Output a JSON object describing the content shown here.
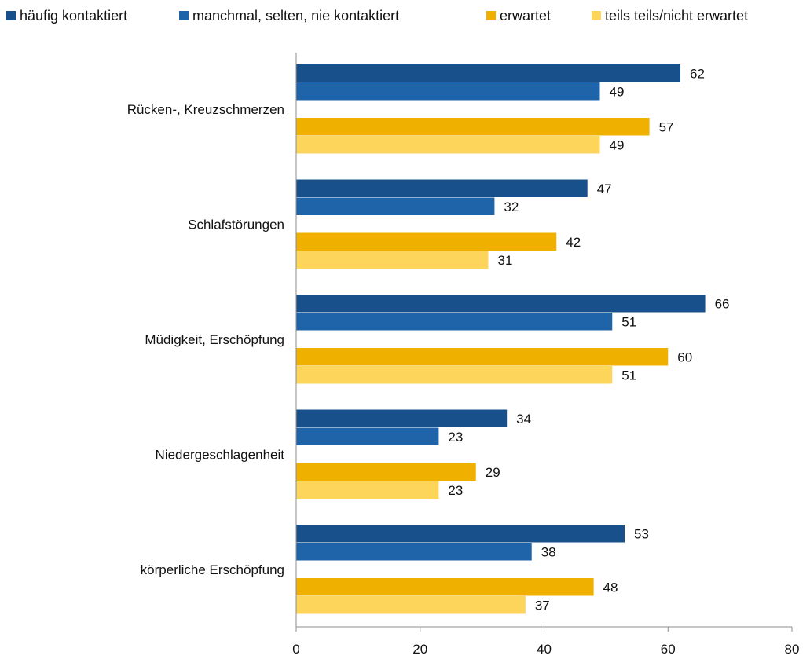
{
  "chart_data": {
    "type": "bar",
    "orientation": "horizontal",
    "categories": [
      "Rücken-, Kreuzschmerzen",
      "Schlafstörungen",
      "Müdigkeit, Erschöpfung",
      "Niedergeschlagenheit",
      "körperliche Erschöpfung"
    ],
    "series": [
      {
        "name": "häufig kontaktiert",
        "color": "#17508A",
        "values": [
          62,
          47,
          66,
          34,
          53
        ]
      },
      {
        "name": "manchmal, selten, nie kontaktiert",
        "color": "#1F64A8",
        "values": [
          49,
          32,
          51,
          23,
          38
        ]
      },
      {
        "name": "erwartet",
        "color": "#F0B000",
        "values": [
          57,
          42,
          60,
          29,
          48
        ]
      },
      {
        "name": "teils teils/nicht erwartet",
        "color": "#FDD55B",
        "values": [
          49,
          31,
          51,
          23,
          37
        ]
      }
    ],
    "xlim": [
      0,
      80
    ],
    "xticks": [
      "0",
      "20",
      "40",
      "60",
      "80"
    ],
    "title": "",
    "xlabel": "",
    "ylabel": "",
    "legend_position": "top",
    "grid": false
  }
}
